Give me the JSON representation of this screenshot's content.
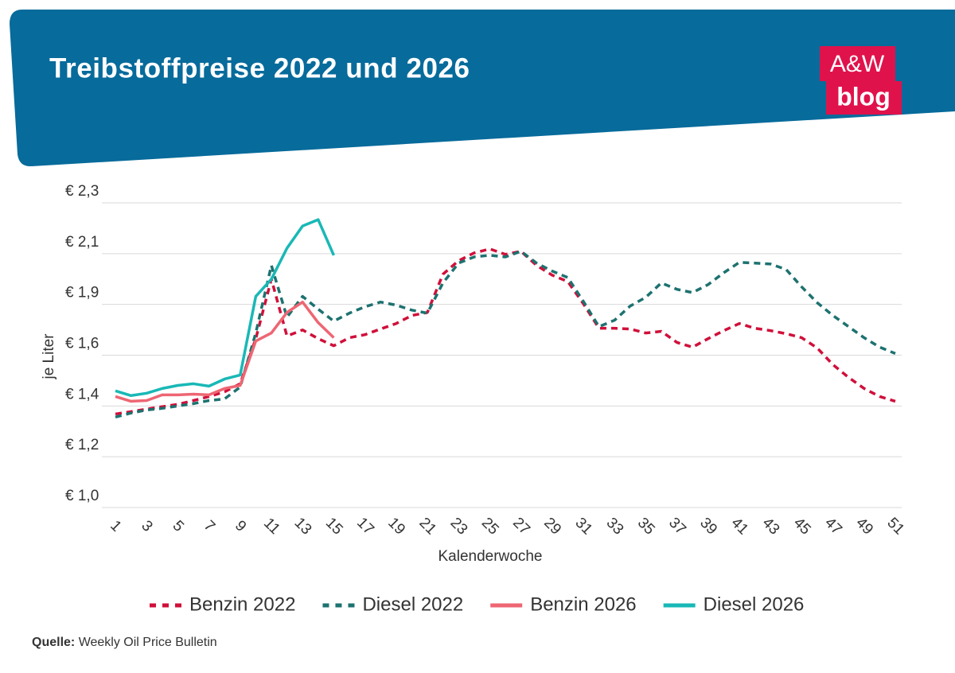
{
  "header": {
    "logo_top": "A&W",
    "logo_bottom": "blog"
  },
  "chart_data": {
    "type": "line",
    "title": "Treibstoffpreise 2022 und 2026",
    "ylabel": "je Liter",
    "xlabel": "Kalenderwoche",
    "x": [
      1,
      2,
      3,
      4,
      5,
      6,
      7,
      8,
      9,
      10,
      11,
      12,
      13,
      14,
      15,
      16,
      17,
      18,
      19,
      20,
      21,
      22,
      23,
      24,
      25,
      26,
      27,
      28,
      29,
      30,
      31,
      32,
      33,
      34,
      35,
      36,
      37,
      38,
      39,
      40,
      41,
      42,
      43,
      44,
      45,
      46,
      47,
      48,
      49,
      50,
      51
    ],
    "xlim": [
      1,
      51
    ],
    "xticks": [
      1,
      3,
      5,
      7,
      9,
      11,
      13,
      15,
      17,
      19,
      21,
      23,
      25,
      27,
      29,
      31,
      33,
      35,
      37,
      39,
      41,
      43,
      45,
      47,
      49,
      51
    ],
    "ylim": [
      1.0,
      2.29
    ],
    "yticks": [
      {
        "value": 1.0,
        "label": "€ 1,0"
      },
      {
        "value": 1.215,
        "label": "€ 1,2"
      },
      {
        "value": 1.43,
        "label": "€ 1,4"
      },
      {
        "value": 1.645,
        "label": "€ 1,6"
      },
      {
        "value": 1.86,
        "label": "€ 1,9"
      },
      {
        "value": 2.075,
        "label": "€ 2,1"
      },
      {
        "value": 2.29,
        "label": "€ 2,3"
      }
    ],
    "grid": true,
    "legend": "bottom",
    "series": [
      {
        "name": "Benzin 2022",
        "color": "#d0103a",
        "dashed": true,
        "values": [
          1.396,
          1.406,
          1.417,
          1.427,
          1.437,
          1.453,
          1.47,
          1.49,
          1.524,
          1.715,
          1.967,
          1.726,
          1.752,
          1.715,
          1.685,
          1.719,
          1.732,
          1.756,
          1.779,
          1.813,
          1.826,
          1.988,
          2.045,
          2.078,
          2.095,
          2.072,
          2.085,
          2.025,
          1.984,
          1.957,
          1.863,
          1.759,
          1.759,
          1.756,
          1.739,
          1.746,
          1.699,
          1.679,
          1.715,
          1.749,
          1.779,
          1.759,
          1.749,
          1.736,
          1.719,
          1.675,
          1.605,
          1.551,
          1.504,
          1.47,
          1.45
        ]
      },
      {
        "name": "Diesel 2022",
        "color": "#1d7270",
        "dashed": true,
        "values": [
          1.383,
          1.4,
          1.413,
          1.42,
          1.43,
          1.44,
          1.453,
          1.46,
          1.51,
          1.739,
          2.025,
          1.806,
          1.894,
          1.84,
          1.789,
          1.823,
          1.85,
          1.87,
          1.857,
          1.836,
          1.823,
          1.951,
          2.035,
          2.061,
          2.068,
          2.061,
          2.085,
          2.035,
          2.001,
          1.974,
          1.873,
          1.766,
          1.793,
          1.853,
          1.89,
          1.951,
          1.924,
          1.91,
          1.944,
          1.994,
          2.038,
          2.035,
          2.031,
          2.008,
          1.934,
          1.867,
          1.813,
          1.766,
          1.719,
          1.679,
          1.652
        ]
      },
      {
        "name": "Benzin 2026",
        "color": "#ee6673",
        "dashed": false,
        "values": [
          1.47,
          1.45,
          1.453,
          1.477,
          1.477,
          1.48,
          1.477,
          1.504,
          1.517,
          1.705,
          1.739,
          1.826,
          1.87,
          1.783,
          1.719,
          null,
          null,
          null,
          null,
          null,
          null,
          null,
          null,
          null,
          null,
          null,
          null,
          null,
          null,
          null,
          null,
          null,
          null,
          null,
          null,
          null,
          null,
          null,
          null,
          null,
          null,
          null,
          null,
          null,
          null,
          null,
          null,
          null,
          null,
          null,
          null
        ]
      },
      {
        "name": "Diesel 2026",
        "color": "#19b8b6",
        "dashed": false,
        "values": [
          1.494,
          1.474,
          1.484,
          1.504,
          1.517,
          1.524,
          1.514,
          1.544,
          1.561,
          1.894,
          1.967,
          2.098,
          2.192,
          2.219,
          2.068,
          null,
          null,
          null,
          null,
          null,
          null,
          null,
          null,
          null,
          null,
          null,
          null,
          null,
          null,
          null,
          null,
          null,
          null,
          null,
          null,
          null,
          null,
          null,
          null,
          null,
          null,
          null,
          null,
          null,
          null,
          null,
          null,
          null,
          null,
          null,
          null
        ]
      }
    ]
  },
  "footer": {
    "source_label": "Quelle:",
    "source": "Weekly Oil Price Bulletin"
  }
}
